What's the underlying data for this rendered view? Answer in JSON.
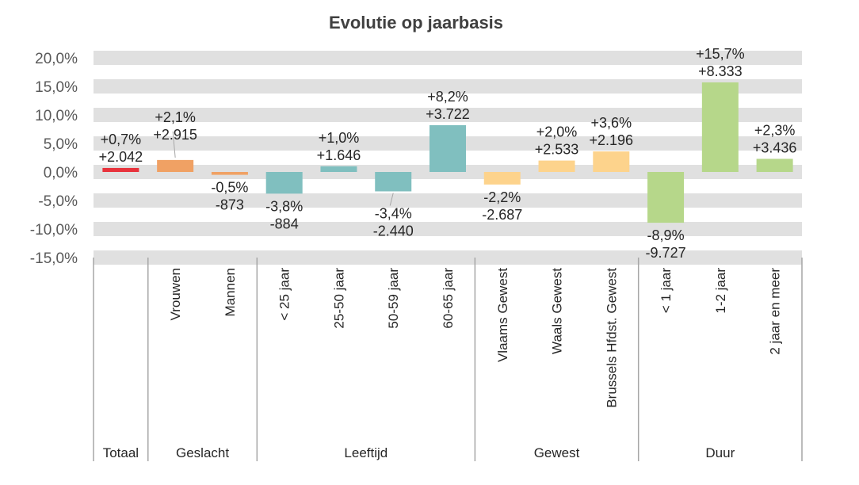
{
  "chart_data": {
    "type": "bar",
    "title": "Evolutie op jaarbasis",
    "xlabel": "",
    "ylabel": "",
    "ylim": [
      -15,
      20
    ],
    "yticks": [
      20,
      15,
      10,
      5,
      0,
      -5,
      -10,
      -15
    ],
    "ytick_labels": [
      "20,0%",
      "15,0%",
      "10,0%",
      "5,0%",
      "0,0%",
      "-5,0%",
      "-10,0%",
      "-15,0%"
    ],
    "grid": "alternating horizontal bands",
    "categories": [
      "",
      "Vrouwen",
      "Mannen",
      "< 25 jaar",
      "25-50 jaar",
      "50-59 jaar",
      "60-65 jaar",
      "Vlaams Gewest",
      "Waals Gewest",
      "Brussels Hfdst. Gewest",
      "< 1 jaar",
      "1-2 jaar",
      "2 jaar en meer"
    ],
    "values": [
      0.7,
      2.1,
      -0.5,
      -3.8,
      1.0,
      -3.4,
      8.2,
      -2.2,
      2.0,
      3.6,
      -8.9,
      15.7,
      2.3
    ],
    "pct_labels": [
      "+0,7%",
      "+2,1%",
      "-0,5%",
      "-3,8%",
      "+1,0%",
      "-3,4%",
      "+8,2%",
      "-2,2%",
      "+2,0%",
      "+3,6%",
      "-8,9%",
      "+15,7%",
      "+2,3%"
    ],
    "count_labels": [
      "+2.042",
      "+2.915",
      "-873",
      "-884",
      "+1.646",
      "-2.440",
      "+3.722",
      "-2.687",
      "+2.533",
      "+2.196",
      "-9.727",
      "+8.333",
      "+3.436"
    ],
    "groups": [
      {
        "name": "Totaal",
        "size": 1,
        "color": "#e8333c"
      },
      {
        "name": "Geslacht",
        "size": 2,
        "color": "#f0a164"
      },
      {
        "name": "Leeftijd",
        "size": 4,
        "color": "#80bfbf"
      },
      {
        "name": "Gewest",
        "size": 3,
        "color": "#fdd38c"
      },
      {
        "name": "Duur",
        "size": 3,
        "color": "#b6d78a"
      }
    ]
  }
}
